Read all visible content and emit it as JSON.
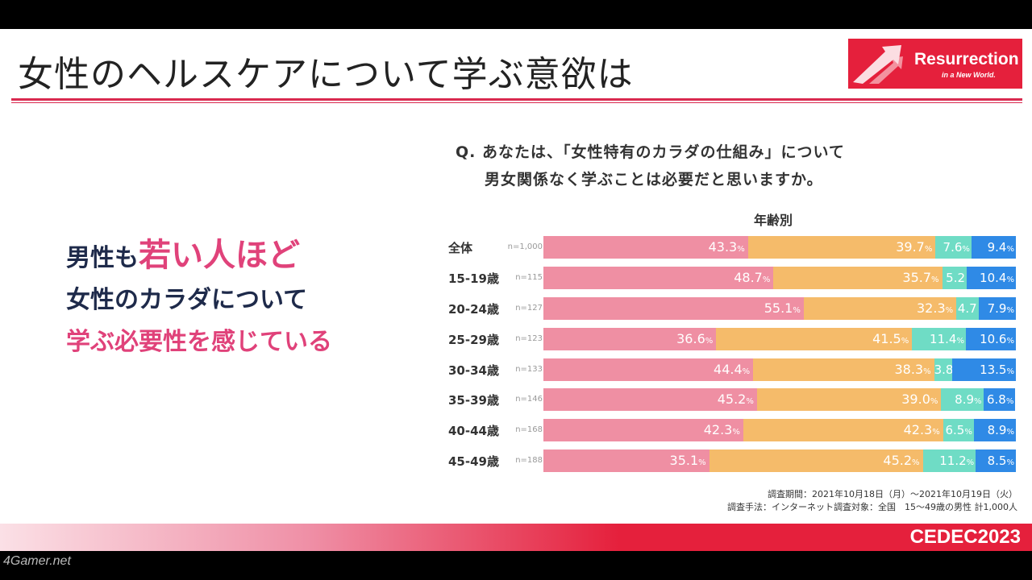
{
  "title": "女性のヘルスケアについて学ぶ意欲は",
  "logo": {
    "name": "Resurrection",
    "sub": "in a New World."
  },
  "headline": {
    "line1a": "男性も",
    "line1b": "若い人ほど",
    "line2": "女性のカラダについて",
    "line3": "学ぶ必要性を感じている"
  },
  "question": {
    "line1": "Q. あなたは、「女性特有のカラダの仕組み」について",
    "line2": "男女関係なく学ぶことは必要だと思いますか。"
  },
  "chart_data": {
    "type": "bar",
    "stacked": true,
    "orientation": "horizontal",
    "title": "年齢別",
    "colors": [
      "#ef8fa3",
      "#f5bb6a",
      "#6fdcc5",
      "#2f8ae6"
    ],
    "categories": [
      "全体",
      "15-19歳",
      "20-24歳",
      "25-29歳",
      "30-34歳",
      "35-39歳",
      "40-44歳",
      "45-49歳"
    ],
    "n_labels": [
      "n=1,000",
      "n=115",
      "n=127",
      "n=123",
      "n=133",
      "n=146",
      "n=168",
      "n=188"
    ],
    "series": [
      {
        "name": "series1",
        "values": [
          43.3,
          48.7,
          55.1,
          36.6,
          44.4,
          45.2,
          42.3,
          35.1
        ]
      },
      {
        "name": "series2",
        "values": [
          39.7,
          35.7,
          32.3,
          41.5,
          38.3,
          39.0,
          42.3,
          45.2
        ]
      },
      {
        "name": "series3",
        "values": [
          7.6,
          5.2,
          4.7,
          11.4,
          3.8,
          8.9,
          6.5,
          11.2
        ]
      },
      {
        "name": "series4",
        "values": [
          9.4,
          10.4,
          7.9,
          10.6,
          13.5,
          6.8,
          8.9,
          8.5
        ]
      }
    ],
    "no_percent_sign": [
      [
        1,
        2
      ],
      [
        2,
        2
      ],
      [
        4,
        2
      ]
    ],
    "xlim": [
      0,
      100
    ]
  },
  "notes": {
    "line1": "調査期間：2021年10月18日（月）～2021年10月19日（火）",
    "line2": "調査手法：インターネット調査対象：全国　15～49歳の男性 計1,000人"
  },
  "footer": {
    "brand": "CEDEC2023"
  },
  "watermark": "4Gamer.net"
}
